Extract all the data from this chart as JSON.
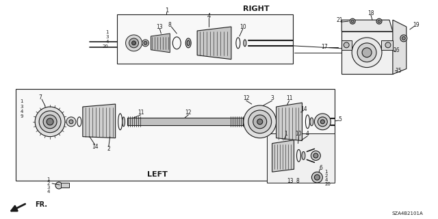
{
  "bg_color": "#ffffff",
  "line_color": "#1a1a1a",
  "text_color": "#1a1a1a",
  "label_RIGHT": "RIGHT",
  "label_LEFT": "LEFT",
  "label_FR": "FR.",
  "diagram_code": "SZA4B2101A",
  "figsize": [
    6.4,
    3.2
  ],
  "dpi": 100
}
